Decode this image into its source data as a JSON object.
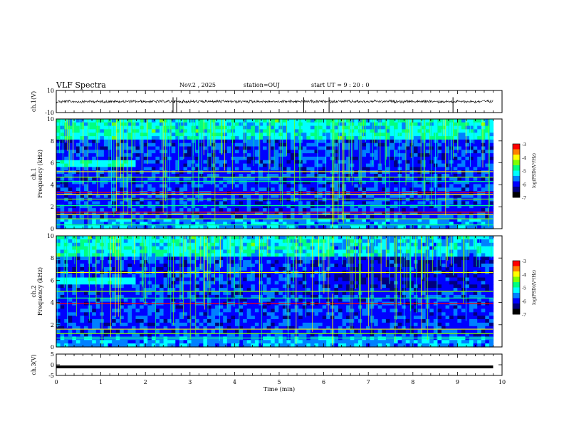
{
  "header": {
    "title": "VLF Spectra",
    "date": "Nov.2 , 2025",
    "station": "station=OUJ",
    "start": "start UT = 9 : 20 : 0"
  },
  "colors": {
    "background": "#ffffff",
    "axis": "#000000",
    "colormap": [
      "#000000",
      "#000080",
      "#0000ff",
      "#0080ff",
      "#00ffff",
      "#00ff80",
      "#80ff00",
      "#ffff00",
      "#ff8000",
      "#ff0000",
      "#ffffff"
    ]
  },
  "chart_data": [
    {
      "type": "line",
      "name": "ch1-waveform",
      "title": "VLF Spectra",
      "ylabel": "ch.1(V)",
      "ylim": [
        -10,
        10
      ],
      "yticks": [
        "10",
        "-10"
      ],
      "xlim": [
        0,
        10
      ],
      "description_values": {
        "baseline": 0,
        "amplitude_typical": 1.5,
        "data_end_min": 9.8
      }
    },
    {
      "type": "heatmap",
      "name": "ch1-spectrogram",
      "ylabel_channel": "ch.1",
      "ylabel": "Frequency (kHz)",
      "ylim": [
        0,
        10
      ],
      "yticks": [
        "0",
        "2",
        "4",
        "6",
        "8",
        "10"
      ],
      "xlim": [
        0,
        10
      ],
      "data_end_min": 9.8,
      "colorbar": {
        "label": "log(PSD)(V²/Hz)",
        "range": [
          -7,
          -3
        ],
        "ticks": [
          "-3",
          "-4",
          "-5",
          "-6",
          "-7"
        ]
      },
      "features": {
        "hiss_band_khz": [
          5.6,
          6.3
        ],
        "hiss_end_min": 1.8,
        "step_change_min": 6.2,
        "strong_lines_khz": [
          0.35,
          0.9,
          1.3,
          1.5,
          2.1,
          2.7,
          3.1,
          3.3,
          4.3,
          4.7,
          5.2
        ]
      }
    },
    {
      "type": "heatmap",
      "name": "ch2-spectrogram",
      "ylabel_channel": "ch.2",
      "ylabel": "Frequency (kHz)",
      "ylim": [
        0,
        10
      ],
      "yticks": [
        "0",
        "2",
        "4",
        "6",
        "8",
        "10"
      ],
      "xlim": [
        0,
        10
      ],
      "data_end_min": 9.8,
      "colorbar": {
        "label": "log(PSD)(V²/Hz)",
        "range": [
          -7,
          -3
        ],
        "ticks": [
          "-3",
          "-4",
          "-5",
          "-6",
          "-7"
        ]
      },
      "features": {
        "hiss_band_khz": [
          5.6,
          6.3
        ],
        "hiss_end_min": 1.8,
        "step_change_min": 6.2,
        "strong_lines_khz": [
          0.8,
          1.2,
          1.6,
          3.9,
          4.4,
          5.0,
          6.7
        ]
      }
    },
    {
      "type": "line",
      "name": "ch3-waveform",
      "ylabel": "ch.3(V)",
      "ylim": [
        -5,
        5
      ],
      "yticks": [
        "5",
        "0",
        "-5"
      ],
      "xlim": [
        0,
        10
      ],
      "xlabel": "Time (min)",
      "xticks": [
        "0",
        "1",
        "2",
        "3",
        "4",
        "5",
        "6",
        "7",
        "8",
        "9",
        "10"
      ],
      "description_values": {
        "baseline": -1,
        "data_end_min": 9.8
      }
    }
  ]
}
